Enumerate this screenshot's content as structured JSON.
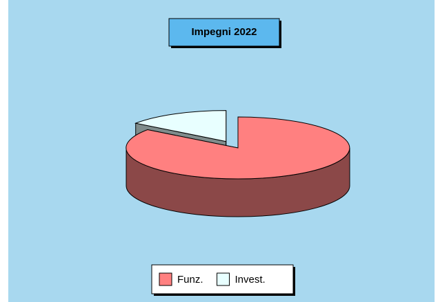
{
  "chart_data": {
    "type": "pie",
    "title": "Impegni 2022",
    "categories": [
      "Funz.",
      "Invest."
    ],
    "values": [
      85,
      15
    ],
    "colors": [
      "#ff8080",
      "#e8ffff"
    ],
    "side_colors": [
      "#8b4848",
      "#7f8c8c"
    ],
    "explode": [
      false,
      true
    ],
    "legend": "bottom"
  }
}
